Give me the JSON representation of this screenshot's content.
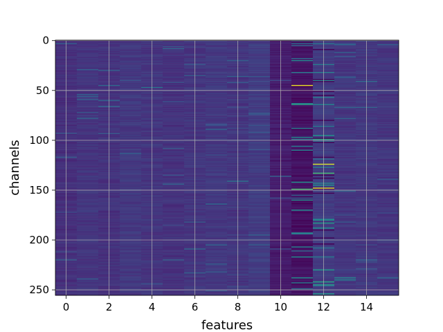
{
  "chart_data": {
    "type": "heatmap",
    "title": "",
    "xlabel": "features",
    "ylabel": "channels",
    "columns": 16,
    "rows": 256,
    "x_range": [
      -0.5,
      15.5
    ],
    "y_range": [
      255.5,
      -0.5
    ],
    "y_inverted": true,
    "x_ticks": [
      0,
      2,
      4,
      6,
      8,
      10,
      12,
      14
    ],
    "y_ticks": [
      0,
      50,
      100,
      150,
      200,
      250
    ],
    "grid": true,
    "colormap": "viridis",
    "colors": {
      "low": "#440154",
      "base": "#472c7a",
      "mid": "#2a788e",
      "high": "#22a884",
      "peak": "#fde725"
    },
    "column_base_levels": [
      0.14,
      0.16,
      0.15,
      0.17,
      0.16,
      0.15,
      0.16,
      0.17,
      0.16,
      0.18,
      0.08,
      0.05,
      0.18,
      0.16,
      0.17,
      0.16
    ],
    "highlights": [
      {
        "col": 11,
        "row": 45,
        "value": 0.97
      },
      {
        "col": 12,
        "row": 124,
        "value": 0.95
      },
      {
        "col": 12,
        "row": 148,
        "value": 0.96
      },
      {
        "col": 11,
        "row": 149,
        "value": 0.7
      },
      {
        "col": 12,
        "row": 133,
        "value": 0.7
      },
      {
        "col": 11,
        "row": 64,
        "value": 0.6
      },
      {
        "col": 12,
        "row": 99,
        "value": 0.6
      },
      {
        "col": 11,
        "row": 170,
        "value": 0.5
      },
      {
        "col": 11,
        "row": 193,
        "value": 0.5
      },
      {
        "col": 12,
        "row": 183,
        "value": 0.55
      },
      {
        "col": 12,
        "row": 188,
        "value": 0.5
      },
      {
        "col": 12,
        "row": 242,
        "value": 0.6
      },
      {
        "col": 12,
        "row": 245,
        "value": 0.55
      },
      {
        "col": 11,
        "row": 238,
        "value": 0.5
      },
      {
        "col": 11,
        "row": 160,
        "value": 0.5
      },
      {
        "col": 13,
        "row": 238,
        "value": 0.45
      },
      {
        "col": 13,
        "row": 240,
        "value": 0.45
      },
      {
        "col": 4,
        "row": 47,
        "value": 0.4
      },
      {
        "col": 8,
        "row": 141,
        "value": 0.4
      },
      {
        "col": 14,
        "row": 41,
        "value": 0.35
      },
      {
        "col": 13,
        "row": 4,
        "value": 0.35
      },
      {
        "col": 7,
        "row": 164,
        "value": 0.35
      },
      {
        "col": 6,
        "row": 209,
        "value": 0.35
      },
      {
        "col": 11,
        "row": 0,
        "value": 0.4
      },
      {
        "col": 2,
        "row": 45,
        "value": 0.35
      }
    ]
  }
}
